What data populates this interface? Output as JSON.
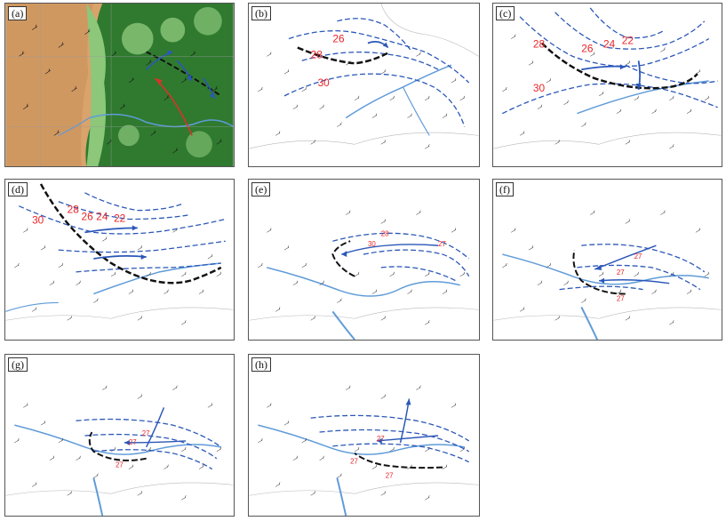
{
  "panels": [
    {
      "id": "a",
      "label": "(a)"
    },
    {
      "id": "b",
      "label": "(b)",
      "isotherms": [
        "26",
        "28",
        "30"
      ]
    },
    {
      "id": "c",
      "label": "(c)",
      "isotherms": [
        "28",
        "26",
        "24",
        "22",
        "30"
      ]
    },
    {
      "id": "d",
      "label": "(d)",
      "isotherms": [
        "30",
        "28",
        "26",
        "24",
        "22"
      ]
    },
    {
      "id": "e",
      "label": "(e)",
      "isotherms": [
        "30",
        "28",
        "27"
      ]
    },
    {
      "id": "f",
      "label": "(f)",
      "isotherms": [
        "27",
        "27",
        "27"
      ]
    },
    {
      "id": "g",
      "label": "(g)",
      "isotherms": [
        "27",
        "27",
        "27"
      ]
    },
    {
      "id": "h",
      "label": "(h)",
      "isotherms": [
        "27",
        "27",
        "27"
      ]
    }
  ],
  "colors": {
    "isotherm": "#2b57b8",
    "shear_line": "#111111",
    "river": "#5f9bd8",
    "terrain_low": "#2f7a2f",
    "terrain_mid": "#8cc77a",
    "terrain_high": "#d9a36b",
    "flow_arrow": "#2b57b8",
    "jet_arrow": "#d9332a",
    "label": "#e8262a"
  }
}
